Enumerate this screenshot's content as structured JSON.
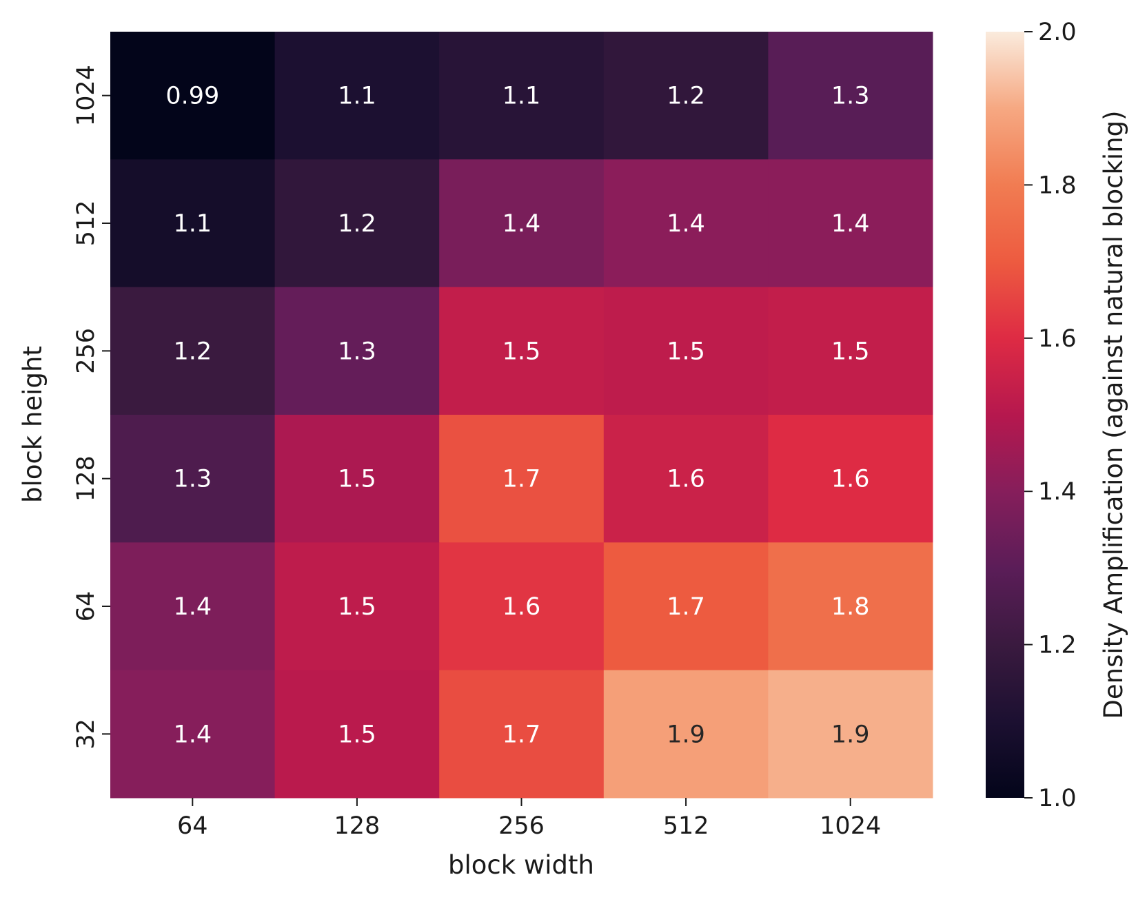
{
  "chart_data": {
    "type": "heatmap",
    "xlabel": "block width",
    "ylabel": "block height",
    "x_categories": [
      "64",
      "128",
      "256",
      "512",
      "1024"
    ],
    "y_categories": [
      "1024",
      "512",
      "256",
      "128",
      "64",
      "32"
    ],
    "values": [
      [
        0.99,
        1.1,
        1.14,
        1.17,
        1.29
      ],
      [
        1.07,
        1.17,
        1.37,
        1.41,
        1.41
      ],
      [
        1.2,
        1.32,
        1.53,
        1.52,
        1.53
      ],
      [
        1.26,
        1.48,
        1.68,
        1.55,
        1.6
      ],
      [
        1.38,
        1.52,
        1.62,
        1.7,
        1.76
      ],
      [
        1.4,
        1.51,
        1.67,
        1.88,
        1.91
      ]
    ],
    "cell_labels": [
      [
        "0.99",
        "1.1",
        "1.1",
        "1.2",
        "1.3"
      ],
      [
        "1.1",
        "1.2",
        "1.4",
        "1.4",
        "1.4"
      ],
      [
        "1.2",
        "1.3",
        "1.5",
        "1.5",
        "1.5"
      ],
      [
        "1.3",
        "1.5",
        "1.7",
        "1.6",
        "1.6"
      ],
      [
        "1.4",
        "1.5",
        "1.6",
        "1.7",
        "1.8"
      ],
      [
        "1.4",
        "1.5",
        "1.7",
        "1.9",
        "1.9"
      ]
    ],
    "colormap": "rocket",
    "colorbar": {
      "label": "Density Amplification (against natural blocking)",
      "range": [
        1.0,
        2.0
      ],
      "ticks": [
        "1.0",
        "1.2",
        "1.4",
        "1.6",
        "1.8",
        "2.0"
      ],
      "placement": "right"
    },
    "grid": false,
    "legend": "none"
  }
}
